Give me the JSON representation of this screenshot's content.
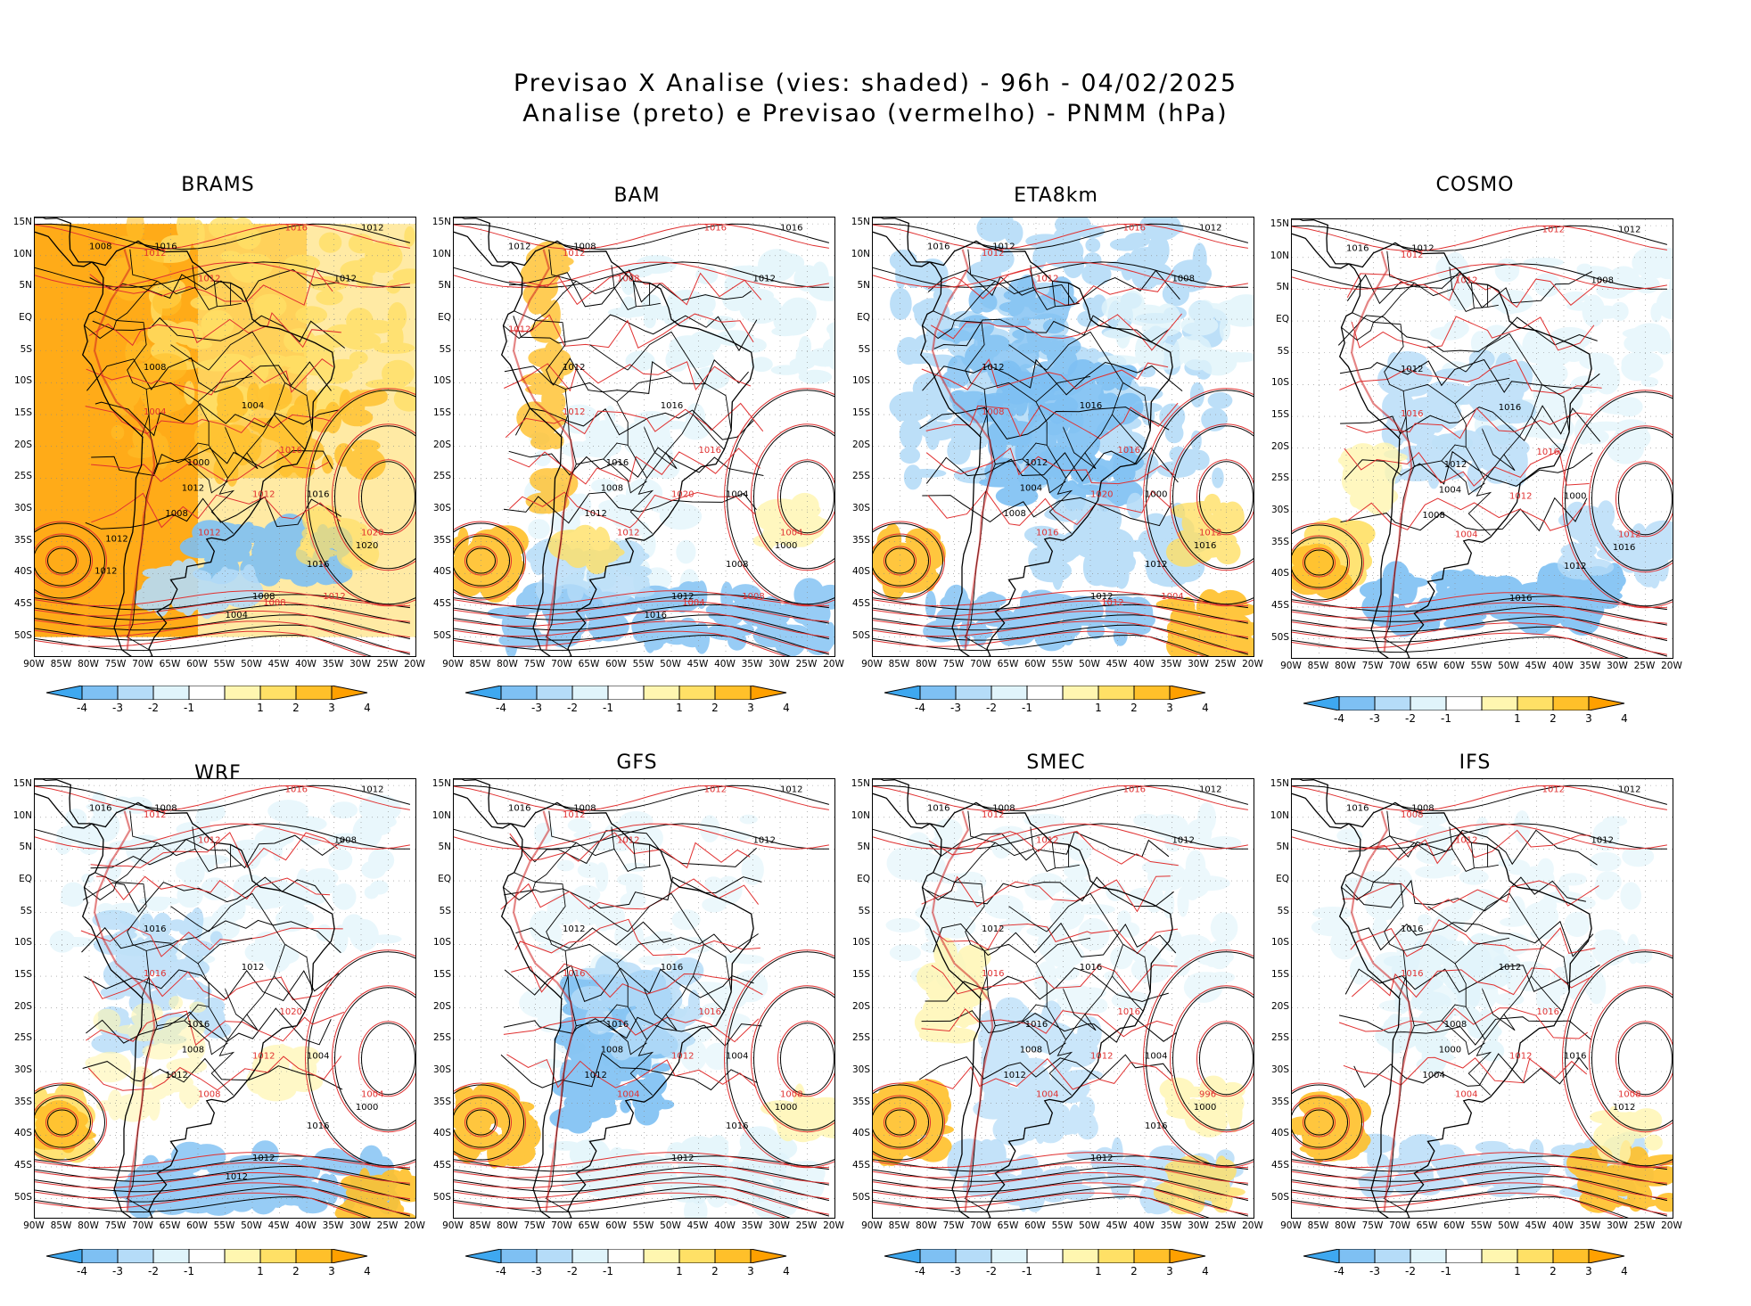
{
  "title_line1": "Previsao X Analise (vies: shaded) - 96h - 04/02/2025",
  "title_line2": "Analise (preto) e Previsao (vermelho) - PNMM (hPa)",
  "lat_labels": [
    "15N",
    "10N",
    "5N",
    "EQ",
    "5S",
    "10S",
    "15S",
    "20S",
    "25S",
    "30S",
    "35S",
    "40S",
    "45S",
    "50S"
  ],
  "lon_labels": [
    "90W",
    "85W",
    "80W",
    "75W",
    "70W",
    "65W",
    "60W",
    "55W",
    "50W",
    "45W",
    "40W",
    "35W",
    "30W",
    "25W",
    "20W"
  ],
  "colorbar_labels": [
    "-4",
    "-3",
    "-2",
    "-1",
    "1",
    "2",
    "3",
    "4"
  ],
  "colorbar_colors": [
    "#3ea8f0",
    "#7ec0f3",
    "#b5dcf8",
    "#e0f4fb",
    "#ffffff",
    "#fff6b0",
    "#ffe066",
    "#ffc02a",
    "#ffa000"
  ],
  "panels": [
    {
      "name": "BRAMS",
      "labels": {
        "black": [
          "1008",
          "1012",
          "1016",
          "1012",
          "1008",
          "1004",
          "1000",
          "1008",
          "1012",
          "1016",
          "1020",
          "1016",
          "1008",
          "1004",
          "1012",
          "1012"
        ],
        "red": [
          "1016",
          "1012",
          "1012",
          "1004",
          "1016",
          "1012",
          "1012",
          "1020",
          "1012",
          "1008"
        ]
      }
    },
    {
      "name": "BAM",
      "labels": {
        "black": [
          "1012",
          "1016",
          "1008",
          "1012",
          "1012",
          "1016",
          "1016",
          "1012",
          "1008",
          "1004",
          "1000",
          "1008",
          "1012",
          "1016"
        ],
        "red": [
          "1016",
          "1012",
          "1008",
          "1012",
          "1016",
          "1020",
          "1012",
          "1004",
          "1008",
          "1004",
          "1012"
        ]
      }
    },
    {
      "name": "ETA8km",
      "labels": {
        "black": [
          "1016",
          "1012",
          "1012",
          "1008",
          "1012",
          "1016",
          "1012",
          "1008",
          "1004",
          "1000",
          "1016",
          "1012",
          "1012"
        ],
        "red": [
          "1016",
          "1012",
          "1012",
          "1008",
          "1016",
          "1020",
          "1016",
          "1012",
          "1004",
          "1012"
        ]
      }
    },
    {
      "name": "COSMO",
      "labels": {
        "black": [
          "1016",
          "1012",
          "1012",
          "1008",
          "1012",
          "1016",
          "1012",
          "1008",
          "1004",
          "1000",
          "1016",
          "1012",
          "1016"
        ],
        "red": [
          "1012",
          "1012",
          "1012",
          "1016",
          "1016",
          "1012",
          "1004",
          "1012"
        ]
      }
    },
    {
      "name": "WRF",
      "labels": {
        "black": [
          "1016",
          "1012",
          "1008",
          "1008",
          "1016",
          "1012",
          "1016",
          "1012",
          "1008",
          "1004",
          "1000",
          "1016",
          "1012",
          "1012"
        ],
        "red": [
          "1016",
          "1012",
          "1012",
          "1016",
          "1020",
          "1012",
          "1008",
          "1004"
        ]
      }
    },
    {
      "name": "GFS",
      "labels": {
        "black": [
          "1016",
          "1012",
          "1008",
          "1012",
          "1012",
          "1016",
          "1016",
          "1012",
          "1008",
          "1004",
          "1000",
          "1016",
          "1012"
        ],
        "red": [
          "1012",
          "1012",
          "1012",
          "1016",
          "1016",
          "1012",
          "1004",
          "1008"
        ]
      }
    },
    {
      "name": "SMEC",
      "labels": {
        "black": [
          "1016",
          "1012",
          "1008",
          "1012",
          "1012",
          "1016",
          "1016",
          "1012",
          "1008",
          "1004",
          "1000",
          "1016",
          "1012"
        ],
        "red": [
          "1016",
          "1012",
          "1012",
          "1016",
          "1016",
          "1012",
          "1004",
          "996"
        ]
      }
    },
    {
      "name": "IFS",
      "labels": {
        "black": [
          "1016",
          "1012",
          "1008",
          "1012",
          "1016",
          "1012",
          "1008",
          "1004",
          "1000",
          "1016",
          "1012"
        ],
        "red": [
          "1012",
          "1008",
          "1012",
          "1016",
          "1016",
          "1012",
          "1004",
          "1008"
        ]
      }
    }
  ]
}
